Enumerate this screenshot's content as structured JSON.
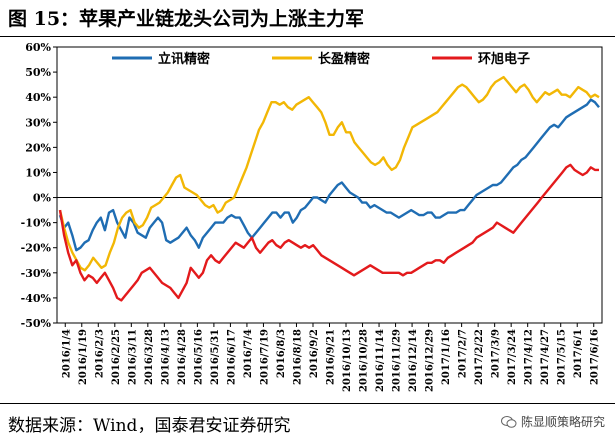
{
  "figure_title": "图 15：苹果产业链龙头公司为上涨主力军",
  "source_note": "数据来源：Wind，国泰君安证券研究",
  "watermark_text": "陈显顺策略研究",
  "watermark_icon": "wechat-icon",
  "chart_data": {
    "type": "line",
    "title": "图 15：苹果产业链龙头公司为上涨主力军",
    "xlabel": "",
    "ylabel": "",
    "ylim": [
      -50,
      60
    ],
    "yticks": [
      -50,
      -40,
      -30,
      -20,
      -10,
      0,
      10,
      20,
      30,
      40,
      50,
      60
    ],
    "ytick_labels": [
      "-50%",
      "-40%",
      "-30%",
      "-20%",
      "-10%",
      "0%",
      "10%",
      "20%",
      "30%",
      "40%",
      "50%",
      "60%"
    ],
    "grid": false,
    "legend_position": "top",
    "x_tick_labels": [
      "2016/1/4",
      "2016/1/19",
      "2016/2/3",
      "2016/2/25",
      "2016/3/11",
      "2016/3/28",
      "2016/4/13",
      "2016/4/28",
      "2016/5/16",
      "2016/5/31",
      "2016/6/17",
      "2016/7/4",
      "2016/7/19",
      "2016/8/3",
      "2016/8/18",
      "2016/9/2",
      "2016/9/21",
      "2016/10/13",
      "2016/10/28",
      "2016/11/14",
      "2016/11/29",
      "2016/12/14",
      "2016/12/29",
      "2017/1/16",
      "2017/2/7",
      "2017/2/22",
      "2017/3/9",
      "2017/3/24",
      "2017/4/12",
      "2017/4/27",
      "2017/5/15",
      "2017/6/1",
      "2017/6/16"
    ],
    "series": [
      {
        "name": "立讯精密",
        "color": "#1f6db3",
        "values": [
          -7,
          -12,
          -10,
          -15,
          -21,
          -20,
          -18,
          -17,
          -13,
          -10,
          -8,
          -13,
          -6,
          -5,
          -10,
          -13,
          -16,
          -8,
          -10,
          -14,
          -15,
          -16,
          -12,
          -10,
          -8,
          -10,
          -17,
          -18,
          -17,
          -16,
          -14,
          -12,
          -15,
          -17,
          -20,
          -16,
          -14,
          -12,
          -10,
          -10,
          -10,
          -8,
          -7,
          -8,
          -8,
          -11,
          -14,
          -16,
          -14,
          -12,
          -10,
          -8,
          -6,
          -6,
          -8,
          -6,
          -6,
          -10,
          -8,
          -5,
          -4,
          -2,
          0,
          0,
          -1,
          -2,
          1,
          3,
          5,
          6,
          4,
          2,
          1,
          0,
          -2,
          -2,
          -4,
          -3,
          -4,
          -5,
          -6,
          -6,
          -7,
          -8,
          -7,
          -6,
          -5,
          -6,
          -7,
          -7,
          -6,
          -6,
          -8,
          -8,
          -7,
          -6,
          -6,
          -6,
          -5,
          -5,
          -3,
          -1,
          1,
          2,
          3,
          4,
          5,
          5,
          6,
          8,
          10,
          12,
          13,
          15,
          16,
          18,
          20,
          22,
          24,
          26,
          28,
          29,
          28,
          30,
          32,
          33,
          34,
          35,
          36,
          37,
          39,
          38,
          36
        ]
      },
      {
        "name": "长盈精密",
        "color": "#f2b705",
        "values": [
          -5,
          -12,
          -18,
          -22,
          -25,
          -28,
          -29,
          -27,
          -24,
          -26,
          -28,
          -27,
          -22,
          -18,
          -12,
          -8,
          -6,
          -5,
          -10,
          -12,
          -11,
          -8,
          -4,
          -3,
          -2,
          0,
          2,
          5,
          8,
          9,
          4,
          3,
          2,
          1,
          -1,
          -3,
          -4,
          -3,
          -6,
          -5,
          -2,
          -1,
          0,
          4,
          8,
          12,
          17,
          22,
          27,
          30,
          34,
          38,
          38,
          37,
          38,
          36,
          35,
          37,
          38,
          39,
          40,
          38,
          36,
          34,
          30,
          25,
          25,
          28,
          30,
          26,
          26,
          22,
          20,
          18,
          16,
          14,
          13,
          14,
          16,
          13,
          11,
          12,
          15,
          20,
          24,
          28,
          29,
          30,
          31,
          32,
          33,
          34,
          36,
          38,
          40,
          42,
          44,
          45,
          44,
          42,
          40,
          38,
          39,
          41,
          44,
          46,
          47,
          48,
          46,
          44,
          42,
          44,
          45,
          43,
          40,
          38,
          40,
          42,
          41,
          42,
          43,
          41,
          41,
          40,
          42,
          44,
          43,
          42,
          40,
          41,
          40
        ]
      },
      {
        "name": "环旭电子",
        "color": "#e31a1c",
        "values": [
          -5,
          -15,
          -22,
          -27,
          -25,
          -30,
          -33,
          -31,
          -32,
          -34,
          -32,
          -30,
          -33,
          -36,
          -40,
          -41,
          -39,
          -37,
          -35,
          -33,
          -30,
          -29,
          -28,
          -30,
          -32,
          -34,
          -35,
          -36,
          -38,
          -40,
          -37,
          -34,
          -28,
          -30,
          -32,
          -30,
          -25,
          -23,
          -25,
          -26,
          -24,
          -22,
          -20,
          -18,
          -19,
          -20,
          -18,
          -16,
          -20,
          -22,
          -20,
          -18,
          -17,
          -19,
          -20,
          -18,
          -17,
          -18,
          -19,
          -20,
          -19,
          -20,
          -19,
          -21,
          -23,
          -24,
          -25,
          -26,
          -27,
          -28,
          -29,
          -30,
          -31,
          -30,
          -29,
          -28,
          -27,
          -28,
          -29,
          -30,
          -30,
          -30,
          -30,
          -30,
          -31,
          -30,
          -30,
          -29,
          -28,
          -27,
          -26,
          -26,
          -25,
          -25,
          -26,
          -24,
          -23,
          -22,
          -21,
          -20,
          -19,
          -18,
          -16,
          -15,
          -14,
          -13,
          -12,
          -10,
          -11,
          -12,
          -13,
          -14,
          -12,
          -10,
          -8,
          -6,
          -4,
          -2,
          0,
          2,
          4,
          6,
          8,
          10,
          12,
          13,
          11,
          10,
          9,
          10,
          12,
          11,
          11
        ]
      }
    ]
  }
}
